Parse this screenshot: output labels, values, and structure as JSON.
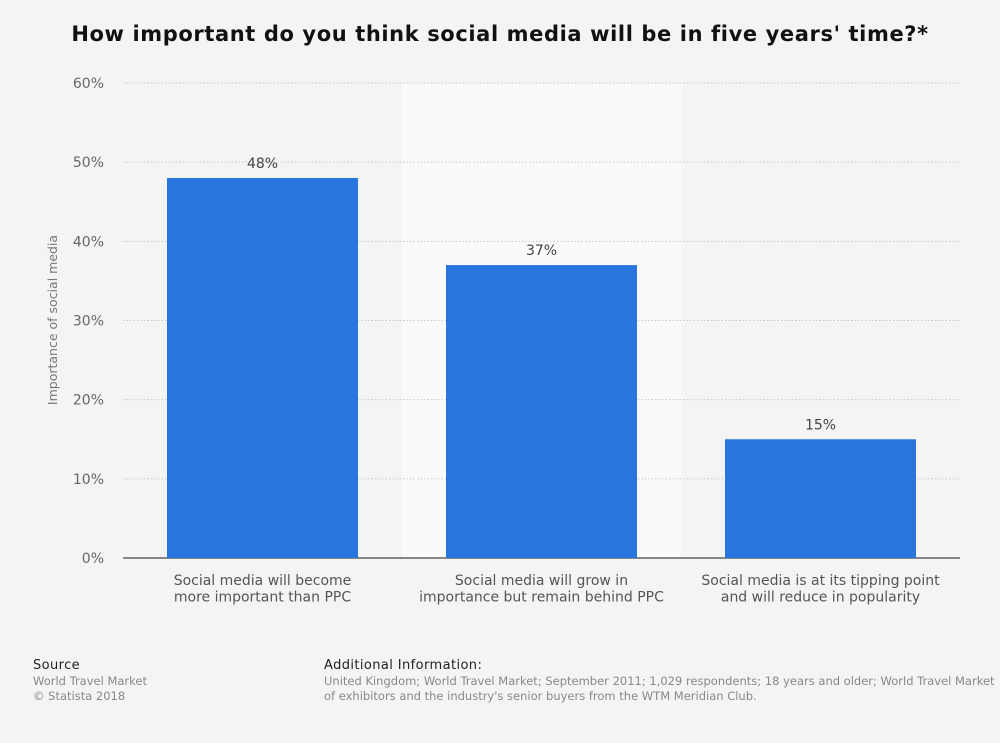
{
  "chart_data": {
    "type": "bar",
    "title": "How important do you think social media will be in five years' time?*",
    "ylabel": "Importance of social media",
    "xlabel": "",
    "ylim": [
      0,
      60
    ],
    "yticks": [
      "0%",
      "10%",
      "20%",
      "30%",
      "40%",
      "50%",
      "60%"
    ],
    "grid": true,
    "categories": [
      [
        "Social media will become",
        "more important than PPC"
      ],
      [
        "Social media will grow in",
        "importance but remain behind PPC"
      ],
      [
        "Social media is at its tipping point",
        "and will reduce in popularity"
      ]
    ],
    "values": [
      48,
      37,
      15
    ],
    "data_labels": [
      "48%",
      "37%",
      "15%"
    ],
    "highlighted_category_index": 1,
    "bar_color": "#2876dd"
  },
  "footer": {
    "source_heading": "Source",
    "source_lines": [
      "World Travel Market",
      "© Statista 2018"
    ],
    "info_heading": "Additional Information:",
    "info_lines": [
      "United Kingdom; World Travel Market; September 2011; 1,029 respondents; 18 years and older; World Travel Market",
      "of exhibitors and the industry's senior buyers from the WTM Meridian Club."
    ]
  }
}
